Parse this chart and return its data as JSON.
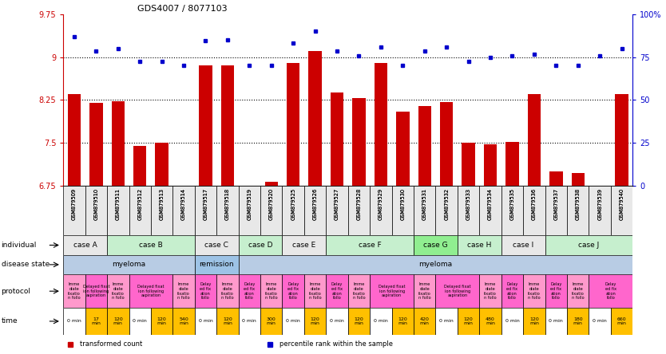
{
  "title": "GDS4007 / 8077103",
  "samples": [
    "GSM879509",
    "GSM879510",
    "GSM879511",
    "GSM879512",
    "GSM879513",
    "GSM879514",
    "GSM879517",
    "GSM879518",
    "GSM879519",
    "GSM879520",
    "GSM879525",
    "GSM879526",
    "GSM879527",
    "GSM879528",
    "GSM879529",
    "GSM879530",
    "GSM879531",
    "GSM879532",
    "GSM879533",
    "GSM879534",
    "GSM879535",
    "GSM879536",
    "GSM879537",
    "GSM879538",
    "GSM879539",
    "GSM879540"
  ],
  "bar_values": [
    8.35,
    8.2,
    8.23,
    7.45,
    7.5,
    6.68,
    8.85,
    8.85,
    6.72,
    6.82,
    8.9,
    9.1,
    8.38,
    8.28,
    8.9,
    8.05,
    8.15,
    8.22,
    7.5,
    7.48,
    7.52,
    8.35,
    7.0,
    6.98,
    6.7,
    8.35
  ],
  "dot_values": [
    9.35,
    9.1,
    9.15,
    8.92,
    8.92,
    8.85,
    9.28,
    9.3,
    8.85,
    8.85,
    9.25,
    9.45,
    9.1,
    9.02,
    9.18,
    8.85,
    9.1,
    9.18,
    8.92,
    9.0,
    9.02,
    9.05,
    8.85,
    8.85,
    9.02,
    9.15
  ],
  "ylim": [
    6.75,
    9.75
  ],
  "yticks": [
    6.75,
    7.5,
    8.25,
    9.0,
    9.75
  ],
  "ytick_labels": [
    "6.75",
    "7.5",
    "8.25",
    "9",
    "9.75"
  ],
  "y2ticks": [
    0,
    25,
    50,
    75,
    100
  ],
  "y2tick_labels": [
    "0",
    "25",
    "50",
    "75",
    "100%"
  ],
  "bar_color": "#cc0000",
  "dot_color": "#0000cc",
  "individual_groups": [
    {
      "text": "case A",
      "start": 0,
      "end": 1,
      "color": "#e8e8e8"
    },
    {
      "text": "case B",
      "start": 2,
      "end": 5,
      "color": "#c6efce"
    },
    {
      "text": "case C",
      "start": 6,
      "end": 7,
      "color": "#e8e8e8"
    },
    {
      "text": "case D",
      "start": 8,
      "end": 9,
      "color": "#c6efce"
    },
    {
      "text": "case E",
      "start": 10,
      "end": 11,
      "color": "#e8e8e8"
    },
    {
      "text": "case F",
      "start": 12,
      "end": 15,
      "color": "#c6efce"
    },
    {
      "text": "case G",
      "start": 16,
      "end": 17,
      "color": "#90ee90"
    },
    {
      "text": "case H",
      "start": 18,
      "end": 19,
      "color": "#c6efce"
    },
    {
      "text": "case I",
      "start": 20,
      "end": 21,
      "color": "#e8e8e8"
    },
    {
      "text": "case J",
      "start": 22,
      "end": 25,
      "color": "#c6efce"
    }
  ],
  "disease_groups": [
    {
      "text": "myeloma",
      "start": 0,
      "end": 5,
      "color": "#b8cce4"
    },
    {
      "text": "remission",
      "start": 6,
      "end": 7,
      "color": "#9dc3e6"
    },
    {
      "text": "myeloma",
      "start": 8,
      "end": 25,
      "color": "#b8cce4"
    }
  ],
  "protocol_spans": [
    {
      "text": "Imme\ndiate\nfixatio\nn follo",
      "start": 0,
      "end": 0,
      "color": "#ff99cc"
    },
    {
      "text": "Delayed fixat\nion following\naspiration",
      "start": 1,
      "end": 1,
      "color": "#ff66cc"
    },
    {
      "text": "Imme\ndiate\nfixatio\nn follo",
      "start": 2,
      "end": 2,
      "color": "#ff99cc"
    },
    {
      "text": "Delayed fixat\nion following\naspiration",
      "start": 3,
      "end": 4,
      "color": "#ff66cc"
    },
    {
      "text": "Imme\ndiate\nfixatio\nn follo",
      "start": 5,
      "end": 5,
      "color": "#ff99cc"
    },
    {
      "text": "Delay\ned fix\nation\nfollo",
      "start": 6,
      "end": 6,
      "color": "#ff66cc"
    },
    {
      "text": "Imme\ndiate\nfixatio\nn follo",
      "start": 7,
      "end": 7,
      "color": "#ff99cc"
    },
    {
      "text": "Delay\ned fix\nation\nfollo",
      "start": 8,
      "end": 8,
      "color": "#ff66cc"
    },
    {
      "text": "Imme\ndiate\nfixatio\nn follo",
      "start": 9,
      "end": 9,
      "color": "#ff99cc"
    },
    {
      "text": "Delay\ned fix\nation\nfollo",
      "start": 10,
      "end": 10,
      "color": "#ff66cc"
    },
    {
      "text": "Imme\ndiate\nfixatio\nn follo",
      "start": 11,
      "end": 11,
      "color": "#ff99cc"
    },
    {
      "text": "Delay\ned fix\nation\nfollo",
      "start": 12,
      "end": 12,
      "color": "#ff66cc"
    },
    {
      "text": "Imme\ndiate\nfixatio\nn follo",
      "start": 13,
      "end": 13,
      "color": "#ff99cc"
    },
    {
      "text": "Delayed fixat\nion following\naspiration",
      "start": 14,
      "end": 15,
      "color": "#ff66cc"
    },
    {
      "text": "Imme\ndiate\nfixatio\nn follo",
      "start": 16,
      "end": 16,
      "color": "#ff99cc"
    },
    {
      "text": "Delayed fixat\nion following\naspiration",
      "start": 17,
      "end": 18,
      "color": "#ff66cc"
    },
    {
      "text": "Imme\ndiate\nfixatio\nn follo",
      "start": 19,
      "end": 19,
      "color": "#ff99cc"
    },
    {
      "text": "Delay\ned fix\nation\nfollo",
      "start": 20,
      "end": 20,
      "color": "#ff66cc"
    },
    {
      "text": "Imme\ndiate\nfixatio\nn follo",
      "start": 21,
      "end": 21,
      "color": "#ff99cc"
    },
    {
      "text": "Delay\ned fix\nation\nfollo",
      "start": 22,
      "end": 22,
      "color": "#ff66cc"
    },
    {
      "text": "Imme\ndiate\nfixatio\nn follo",
      "start": 23,
      "end": 23,
      "color": "#ff99cc"
    },
    {
      "text": "Delay\ned fix\nation\nfollo",
      "start": 24,
      "end": 25,
      "color": "#ff66cc"
    }
  ],
  "time_cells": [
    {
      "text": "0 min",
      "color": "#ffffff"
    },
    {
      "text": "17\nmin",
      "color": "#ffc000"
    },
    {
      "text": "120\nmin",
      "color": "#ffc000"
    },
    {
      "text": "0 min",
      "color": "#ffffff"
    },
    {
      "text": "120\nmin",
      "color": "#ffc000"
    },
    {
      "text": "540\nmin",
      "color": "#ffc000"
    },
    {
      "text": "0 min",
      "color": "#ffffff"
    },
    {
      "text": "120\nmin",
      "color": "#ffc000"
    },
    {
      "text": "0 min",
      "color": "#ffffff"
    },
    {
      "text": "300\nmin",
      "color": "#ffc000"
    },
    {
      "text": "0 min",
      "color": "#ffffff"
    },
    {
      "text": "120\nmin",
      "color": "#ffc000"
    },
    {
      "text": "0 min",
      "color": "#ffffff"
    },
    {
      "text": "120\nmin",
      "color": "#ffc000"
    },
    {
      "text": "0 min",
      "color": "#ffffff"
    },
    {
      "text": "120\nmin",
      "color": "#ffc000"
    },
    {
      "text": "420\nmin",
      "color": "#ffc000"
    },
    {
      "text": "0 min",
      "color": "#ffffff"
    },
    {
      "text": "120\nmin",
      "color": "#ffc000"
    },
    {
      "text": "480\nmin",
      "color": "#ffc000"
    },
    {
      "text": "0 min",
      "color": "#ffffff"
    },
    {
      "text": "120\nmin",
      "color": "#ffc000"
    },
    {
      "text": "0 min",
      "color": "#ffffff"
    },
    {
      "text": "180\nmin",
      "color": "#ffc000"
    },
    {
      "text": "0 min",
      "color": "#ffffff"
    },
    {
      "text": "660\nmin",
      "color": "#ffc000"
    }
  ],
  "legend_items": [
    {
      "label": "transformed count",
      "color": "#cc0000"
    },
    {
      "label": "percentile rank within the sample",
      "color": "#0000cc"
    }
  ],
  "row_labels": [
    "individual",
    "disease state",
    "protocol",
    "time"
  ]
}
